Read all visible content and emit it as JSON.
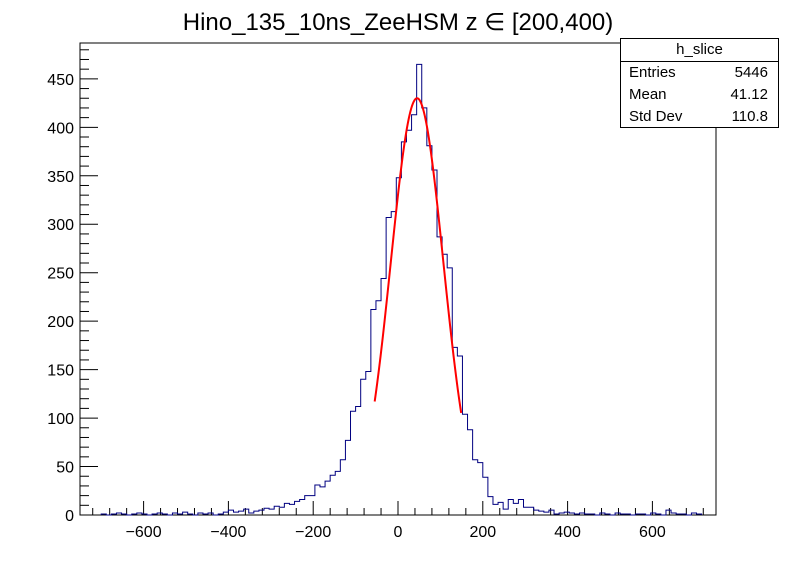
{
  "chart_data": {
    "type": "histogram",
    "title": "Hino_135_10ns_ZeeHSM z  ∈ [200,400)",
    "xlabel": "",
    "ylabel": "",
    "xlim": [
      -750,
      750
    ],
    "ylim": [
      0,
      487
    ],
    "bin_width": 12,
    "x_ticks": [
      -600,
      -400,
      -200,
      0,
      200,
      400,
      600
    ],
    "x_tick_labels": [
      "−600",
      "−400",
      "−200",
      "0",
      "200",
      "400",
      "600"
    ],
    "y_ticks": [
      0,
      50,
      100,
      150,
      200,
      250,
      300,
      350,
      400,
      450
    ],
    "y_tick_labels": [
      "0",
      "50",
      "100",
      "150",
      "200",
      "250",
      "300",
      "350",
      "400",
      "450"
    ],
    "grid": false,
    "line_color": "#000080",
    "fit_color": "#ff0000",
    "bins": [
      {
        "x0": -700,
        "x1": -688,
        "y": 1
      },
      {
        "x0": -688,
        "x1": -676,
        "y": 0
      },
      {
        "x0": -676,
        "x1": -664,
        "y": 1
      },
      {
        "x0": -664,
        "x1": -652,
        "y": 2
      },
      {
        "x0": -652,
        "x1": -640,
        "y": 1
      },
      {
        "x0": -640,
        "x1": -628,
        "y": 0
      },
      {
        "x0": -628,
        "x1": -616,
        "y": 1
      },
      {
        "x0": -616,
        "x1": -604,
        "y": 2
      },
      {
        "x0": -604,
        "x1": -592,
        "y": 1
      },
      {
        "x0": -592,
        "x1": -580,
        "y": 0
      },
      {
        "x0": -580,
        "x1": -568,
        "y": 1
      },
      {
        "x0": -568,
        "x1": -556,
        "y": 2
      },
      {
        "x0": -556,
        "x1": -544,
        "y": 1
      },
      {
        "x0": -544,
        "x1": -532,
        "y": 0
      },
      {
        "x0": -532,
        "x1": -520,
        "y": 2
      },
      {
        "x0": -520,
        "x1": -508,
        "y": 1
      },
      {
        "x0": -508,
        "x1": -496,
        "y": 3
      },
      {
        "x0": -496,
        "x1": -484,
        "y": 1
      },
      {
        "x0": -484,
        "x1": -472,
        "y": 0
      },
      {
        "x0": -472,
        "x1": -460,
        "y": 2
      },
      {
        "x0": -460,
        "x1": -448,
        "y": 1
      },
      {
        "x0": -448,
        "x1": -436,
        "y": 2
      },
      {
        "x0": -436,
        "x1": -424,
        "y": 0
      },
      {
        "x0": -424,
        "x1": -412,
        "y": 1
      },
      {
        "x0": -412,
        "x1": -400,
        "y": 3
      },
      {
        "x0": -400,
        "x1": -388,
        "y": 5
      },
      {
        "x0": -388,
        "x1": -376,
        "y": 3
      },
      {
        "x0": -376,
        "x1": -364,
        "y": 4
      },
      {
        "x0": -364,
        "x1": -352,
        "y": 6
      },
      {
        "x0": -352,
        "x1": -340,
        "y": 2
      },
      {
        "x0": -340,
        "x1": -328,
        "y": 4
      },
      {
        "x0": -328,
        "x1": -316,
        "y": 5
      },
      {
        "x0": -316,
        "x1": -304,
        "y": 7
      },
      {
        "x0": -304,
        "x1": -292,
        "y": 6
      },
      {
        "x0": -292,
        "x1": -280,
        "y": 9
      },
      {
        "x0": -280,
        "x1": -268,
        "y": 8
      },
      {
        "x0": -268,
        "x1": -256,
        "y": 12
      },
      {
        "x0": -256,
        "x1": -244,
        "y": 11
      },
      {
        "x0": -244,
        "x1": -232,
        "y": 14
      },
      {
        "x0": -232,
        "x1": -220,
        "y": 16
      },
      {
        "x0": -220,
        "x1": -208,
        "y": 20
      },
      {
        "x0": -208,
        "x1": -196,
        "y": 20
      },
      {
        "x0": -196,
        "x1": -184,
        "y": 31
      },
      {
        "x0": -184,
        "x1": -172,
        "y": 29
      },
      {
        "x0": -172,
        "x1": -160,
        "y": 35
      },
      {
        "x0": -160,
        "x1": -148,
        "y": 41
      },
      {
        "x0": -148,
        "x1": -136,
        "y": 45
      },
      {
        "x0": -136,
        "x1": -124,
        "y": 57
      },
      {
        "x0": -124,
        "x1": -112,
        "y": 77
      },
      {
        "x0": -112,
        "x1": -100,
        "y": 107
      },
      {
        "x0": -100,
        "x1": -88,
        "y": 112
      },
      {
        "x0": -88,
        "x1": -76,
        "y": 140
      },
      {
        "x0": -76,
        "x1": -64,
        "y": 148
      },
      {
        "x0": -64,
        "x1": -52,
        "y": 212
      },
      {
        "x0": -52,
        "x1": -40,
        "y": 221
      },
      {
        "x0": -40,
        "x1": -28,
        "y": 244
      },
      {
        "x0": -28,
        "x1": -16,
        "y": 307
      },
      {
        "x0": -16,
        "x1": -4,
        "y": 313
      },
      {
        "x0": -4,
        "x1": 8,
        "y": 348
      },
      {
        "x0": 8,
        "x1": 20,
        "y": 385
      },
      {
        "x0": 20,
        "x1": 32,
        "y": 397
      },
      {
        "x0": 32,
        "x1": 44,
        "y": 413
      },
      {
        "x0": 44,
        "x1": 56,
        "y": 465
      },
      {
        "x0": 56,
        "x1": 68,
        "y": 420
      },
      {
        "x0": 68,
        "x1": 80,
        "y": 381
      },
      {
        "x0": 80,
        "x1": 92,
        "y": 356
      },
      {
        "x0": 92,
        "x1": 104,
        "y": 287
      },
      {
        "x0": 104,
        "x1": 116,
        "y": 269
      },
      {
        "x0": 116,
        "x1": 128,
        "y": 255
      },
      {
        "x0": 128,
        "x1": 140,
        "y": 173
      },
      {
        "x0": 140,
        "x1": 152,
        "y": 164
      },
      {
        "x0": 152,
        "x1": 164,
        "y": 104
      },
      {
        "x0": 164,
        "x1": 176,
        "y": 88
      },
      {
        "x0": 176,
        "x1": 188,
        "y": 57
      },
      {
        "x0": 188,
        "x1": 200,
        "y": 54
      },
      {
        "x0": 200,
        "x1": 212,
        "y": 39
      },
      {
        "x0": 212,
        "x1": 224,
        "y": 19
      },
      {
        "x0": 224,
        "x1": 236,
        "y": 11
      },
      {
        "x0": 236,
        "x1": 248,
        "y": 13
      },
      {
        "x0": 248,
        "x1": 260,
        "y": 6
      },
      {
        "x0": 260,
        "x1": 272,
        "y": 16
      },
      {
        "x0": 272,
        "x1": 284,
        "y": 12
      },
      {
        "x0": 284,
        "x1": 296,
        "y": 16
      },
      {
        "x0": 296,
        "x1": 308,
        "y": 8
      },
      {
        "x0": 308,
        "x1": 320,
        "y": 8
      },
      {
        "x0": 320,
        "x1": 332,
        "y": 5
      },
      {
        "x0": 332,
        "x1": 344,
        "y": 4
      },
      {
        "x0": 344,
        "x1": 356,
        "y": 3
      },
      {
        "x0": 356,
        "x1": 368,
        "y": 5
      },
      {
        "x0": 368,
        "x1": 380,
        "y": 1
      },
      {
        "x0": 380,
        "x1": 392,
        "y": 2
      },
      {
        "x0": 392,
        "x1": 404,
        "y": 3
      },
      {
        "x0": 404,
        "x1": 416,
        "y": 2
      },
      {
        "x0": 416,
        "x1": 428,
        "y": 1
      },
      {
        "x0": 428,
        "x1": 440,
        "y": 2
      },
      {
        "x0": 440,
        "x1": 452,
        "y": 1
      },
      {
        "x0": 452,
        "x1": 464,
        "y": 1
      },
      {
        "x0": 464,
        "x1": 476,
        "y": 0
      },
      {
        "x0": 476,
        "x1": 488,
        "y": 2
      },
      {
        "x0": 488,
        "x1": 500,
        "y": 1
      },
      {
        "x0": 500,
        "x1": 512,
        "y": 0
      },
      {
        "x0": 512,
        "x1": 524,
        "y": 2
      },
      {
        "x0": 524,
        "x1": 536,
        "y": 1
      },
      {
        "x0": 536,
        "x1": 548,
        "y": 1
      },
      {
        "x0": 548,
        "x1": 560,
        "y": 0
      },
      {
        "x0": 560,
        "x1": 572,
        "y": 1
      },
      {
        "x0": 572,
        "x1": 584,
        "y": 1
      },
      {
        "x0": 584,
        "x1": 596,
        "y": 0
      },
      {
        "x0": 596,
        "x1": 608,
        "y": 2
      },
      {
        "x0": 608,
        "x1": 620,
        "y": 1
      },
      {
        "x0": 620,
        "x1": 632,
        "y": 0
      },
      {
        "x0": 632,
        "x1": 644,
        "y": 5
      },
      {
        "x0": 644,
        "x1": 656,
        "y": 2
      },
      {
        "x0": 656,
        "x1": 668,
        "y": 1
      },
      {
        "x0": 668,
        "x1": 680,
        "y": 1
      },
      {
        "x0": 680,
        "x1": 692,
        "y": 0
      },
      {
        "x0": 692,
        "x1": 704,
        "y": 2
      },
      {
        "x0": 704,
        "x1": 716,
        "y": 1
      }
    ],
    "fit": {
      "function": "gaus",
      "amplitude": 430,
      "mean": 45,
      "sigma": 62,
      "range": [
        -55,
        150
      ]
    }
  },
  "stats": {
    "title": "h_slice",
    "rows": [
      {
        "key": "Entries",
        "value": "5446"
      },
      {
        "key": "Mean",
        "value": "41.12"
      },
      {
        "key": "Std Dev",
        "value": "110.8"
      }
    ]
  }
}
